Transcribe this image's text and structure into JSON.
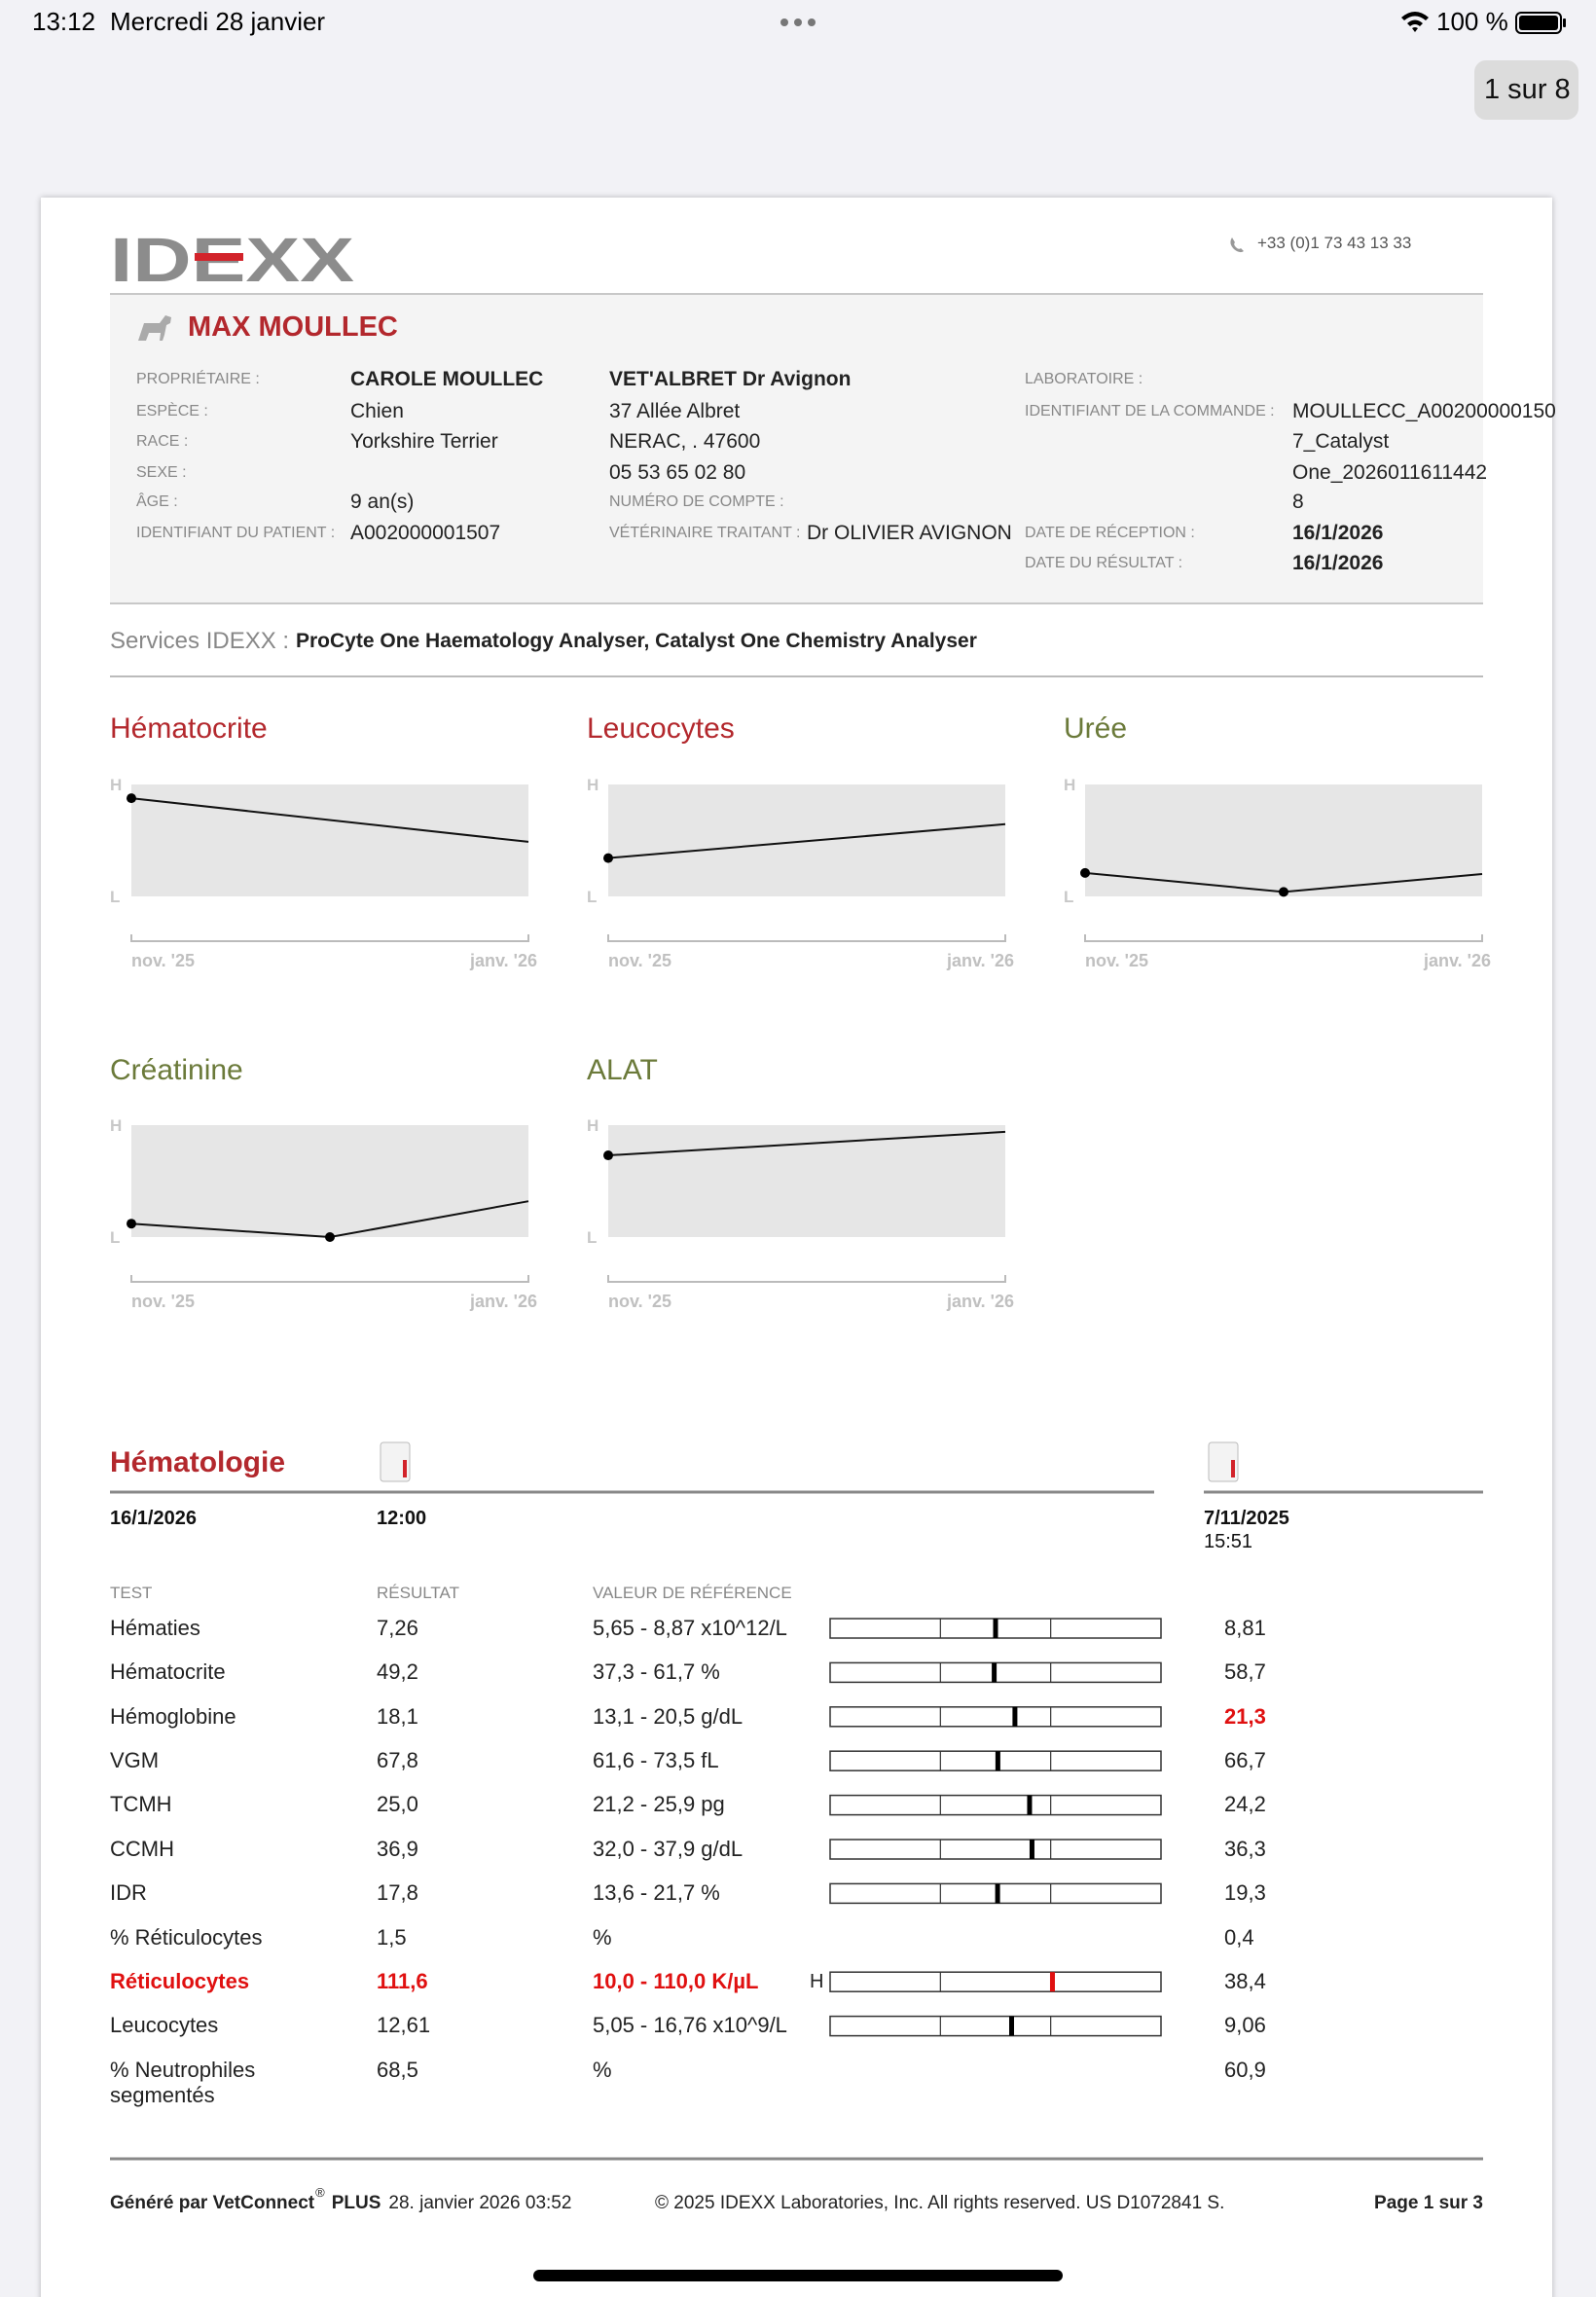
{
  "status_bar": {
    "time": "13:12",
    "date": "Mercredi 28 janvier",
    "battery": "100 %"
  },
  "page_indicator": "1 sur 8",
  "header": {
    "logo": "IDEXX",
    "phone": "+33 (0)1 73 43 13 33"
  },
  "patient": {
    "name": "MAX MOULLEC",
    "fields": [
      {
        "label": "PROPRIÉTAIRE :",
        "value": "CAROLE MOULLEC"
      },
      {
        "label": "ESPÈCE :",
        "value": "Chien"
      },
      {
        "label": "RACE :",
        "value": "Yorkshire Terrier"
      },
      {
        "label": "SEXE :"
      },
      {
        "label": "ÂGE :",
        "value": "9 an(s)"
      },
      {
        "label": "IDENTIFIANT DU PATIENT :",
        "value": "A002000001507"
      }
    ],
    "clinic": {
      "name": "VET'ALBRET Dr Avignon",
      "lines": [
        "37 Allée Albret",
        "NERAC, . 47600",
        "05 53 65 02 80"
      ],
      "account_label": "NUMÉRO DE COMPTE :",
      "vet_label": "VÉTÉRINAIRE TRAITANT :",
      "vet": "Dr OLIVIER AVIGNON"
    },
    "lab": {
      "lab_label": "LABORATOIRE :",
      "order_label": "IDENTIFIANT DE LA COMMANDE :",
      "order_lines": [
        "MOULLECC_A00200000150",
        "7_Catalyst",
        "One_2026011611442",
        "8"
      ],
      "reception_label": "DATE DE RÉCEPTION :",
      "reception": "16/1/2026",
      "result_label": "DATE DU RÉSULTAT :",
      "result": "16/1/2026"
    }
  },
  "services": {
    "label": "Services IDEXX :",
    "value": "ProCyte One Haematology Analyser, Catalyst One Chemistry Analyser"
  },
  "chart_data": [
    {
      "type": "line",
      "title": "Hématocrite",
      "color": "#b3282d",
      "categories": [
        "nov. '25",
        "janv. '26"
      ],
      "values": [
        58.7,
        49.2
      ],
      "ylim": [
        37.3,
        61.7
      ],
      "yticks": [
        {
          "value": 61.7,
          "label": "H"
        },
        {
          "value": 37.3,
          "label": "L"
        }
      ]
    },
    {
      "type": "line",
      "title": "Leucocytes",
      "color": "#b3282d",
      "categories": [
        "nov. '25",
        "janv. '26"
      ],
      "values": [
        9.06,
        12.61
      ],
      "ylim": [
        5.05,
        16.76
      ],
      "yticks": [
        {
          "value": 16.76,
          "label": "H"
        },
        {
          "value": 5.05,
          "label": "L"
        }
      ]
    },
    {
      "type": "line",
      "title": "Urée",
      "color": "#6b7a3a",
      "categories": [
        "nov. '25",
        null,
        "janv. '26"
      ],
      "values": [
        21,
        4,
        20
      ],
      "ylim": [
        0,
        100
      ],
      "yticks": [
        {
          "value": 100,
          "label": "H"
        },
        {
          "value": 0,
          "label": "L"
        }
      ]
    },
    {
      "type": "line",
      "title": "Créatinine",
      "color": "#6b7a3a",
      "categories": [
        "nov. '25",
        null,
        "janv. '26"
      ],
      "values": [
        12,
        0,
        32
      ],
      "ylim": [
        0,
        100
      ],
      "yticks": [
        {
          "value": 100,
          "label": "H"
        },
        {
          "value": 0,
          "label": "L"
        }
      ]
    },
    {
      "type": "line",
      "title": "ALAT",
      "color": "#6b7a3a",
      "categories": [
        "nov. '25",
        "janv. '26"
      ],
      "values": [
        73,
        94
      ],
      "ylim": [
        0,
        100
      ],
      "yticks": [
        {
          "value": 100,
          "label": "H"
        },
        {
          "value": 0,
          "label": "L"
        }
      ]
    }
  ],
  "hematology": {
    "title": "Hématologie",
    "date": "16/1/2026",
    "time": "12:00",
    "previous_date": "7/11/2025",
    "previous_time": "15:51",
    "columns": [
      "TEST",
      "RÉSULTAT",
      "VALEUR DE RÉFÉRENCE"
    ],
    "rows": [
      {
        "test": "Hématies",
        "result": {
          "value": 7.26,
          "label": "7,26"
        },
        "reference": {
          "low": 5.65,
          "high": 8.87,
          "label": "5,65 - 8,87 x10^12/L"
        },
        "previous": "8,81"
      },
      {
        "test": "Hématocrite",
        "result": {
          "value": 49.2,
          "label": "49,2"
        },
        "reference": {
          "low": 37.3,
          "high": 61.7,
          "label": "37,3 - 61,7 %"
        },
        "previous": "58,7"
      },
      {
        "test": "Hémoglobine",
        "result": {
          "value": 18.1,
          "label": "18,1"
        },
        "reference": {
          "low": 13.1,
          "high": 20.5,
          "label": "13,1 - 20,5 g/dL"
        },
        "previous": "21,3",
        "previous_alert": true
      },
      {
        "test": "VGM",
        "result": {
          "value": 67.8,
          "label": "67,8"
        },
        "reference": {
          "low": 61.6,
          "high": 73.5,
          "label": "61,6 - 73,5 fL"
        },
        "previous": "66,7"
      },
      {
        "test": "TCMH",
        "result": {
          "value": 25.0,
          "label": "25,0"
        },
        "reference": {
          "low": 21.2,
          "high": 25.9,
          "label": "21,2 - 25,9 pg"
        },
        "previous": "24,2"
      },
      {
        "test": "CCMH",
        "result": {
          "value": 36.9,
          "label": "36,9"
        },
        "reference": {
          "low": 32.0,
          "high": 37.9,
          "label": "32,0 - 37,9 g/dL"
        },
        "previous": "36,3"
      },
      {
        "test": "IDR",
        "result": {
          "value": 17.8,
          "label": "17,8"
        },
        "reference": {
          "low": 13.6,
          "high": 21.7,
          "label": "13,6 - 21,7 %"
        },
        "previous": "19,3"
      },
      {
        "test": "% Réticulocytes",
        "result": "1,5",
        "reference": {
          "label": "%"
        },
        "previous": "0,4"
      },
      {
        "test": "Réticulocytes",
        "result": {
          "value": 111.6,
          "label": "111,6"
        },
        "reference": {
          "low": 10.0,
          "high": 110.0,
          "label": "10,0 - 110,0 K/µL"
        },
        "flag": "H",
        "alert": true,
        "previous": "38,4"
      },
      {
        "test": "Leucocytes",
        "result": {
          "value": 12.61,
          "label": "12,61"
        },
        "reference": {
          "low": 5.05,
          "high": 16.76,
          "label": "5,05 - 16,76 x10^9/L"
        },
        "previous": "9,06"
      },
      {
        "test": "% Neutrophiles segmentés",
        "result": "68,5",
        "reference": {
          "label": "%"
        },
        "previous": "60,9"
      }
    ]
  },
  "footer": {
    "generated_label": "Généré par VetConnect",
    "registered": "®",
    "product": "PLUS",
    "generated_at": "28. janvier 2026 03:52",
    "copyright": "© 2025 IDEXX Laboratories, Inc. All rights reserved. US D1072841 S.",
    "page": "Page 1 sur 3"
  }
}
